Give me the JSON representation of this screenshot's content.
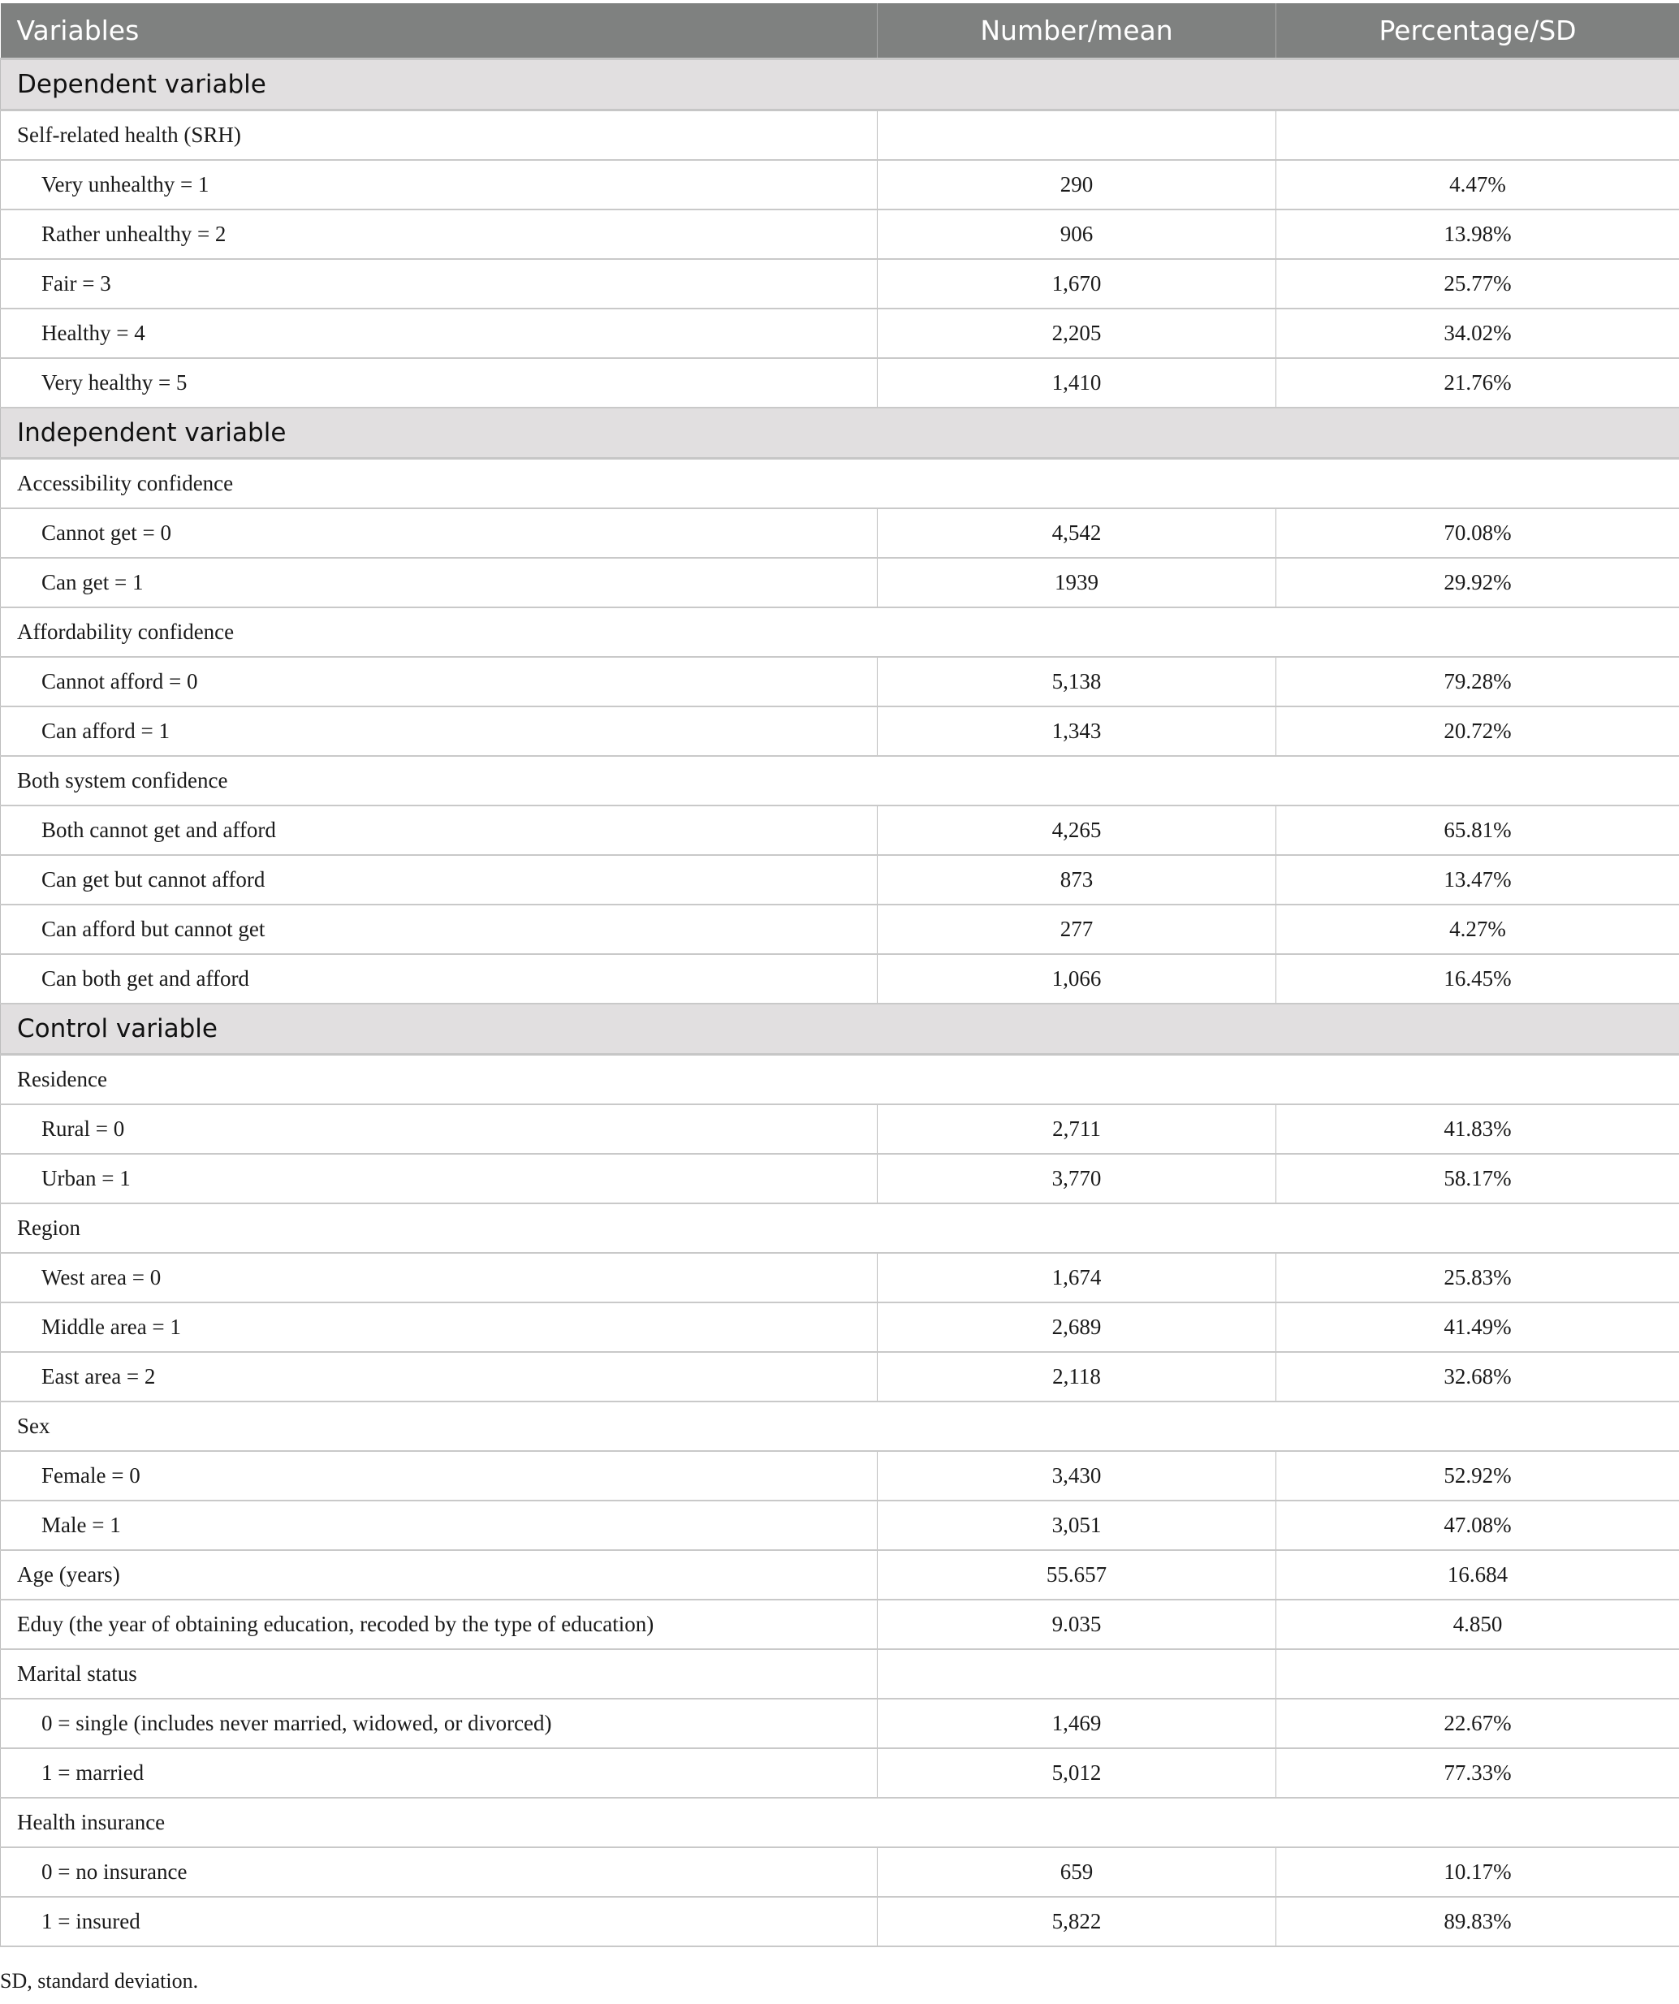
{
  "header": {
    "col1": "Variables",
    "col2": "Number/mean",
    "col3": "Percentage/SD"
  },
  "rows": [
    {
      "type": "section",
      "label": "Dependent variable"
    },
    {
      "type": "group",
      "label": "Self-related health (SRH)",
      "cells": true
    },
    {
      "type": "item",
      "label": "Very unhealthy = 1",
      "n": "290",
      "pct": "4.47%"
    },
    {
      "type": "item",
      "label": "Rather unhealthy = 2",
      "n": "906",
      "pct": "13.98%"
    },
    {
      "type": "item",
      "label": "Fair = 3",
      "n": "1,670",
      "pct": "25.77%"
    },
    {
      "type": "item",
      "label": "Healthy = 4",
      "n": "2,205",
      "pct": "34.02%"
    },
    {
      "type": "item",
      "label": "Very healthy = 5",
      "n": "1,410",
      "pct": "21.76%"
    },
    {
      "type": "section",
      "label": "Independent variable"
    },
    {
      "type": "group",
      "label": "Accessibility confidence"
    },
    {
      "type": "item",
      "label": "Cannot get = 0",
      "n": "4,542",
      "pct": "70.08%"
    },
    {
      "type": "item",
      "label": "Can get = 1",
      "n": "1939",
      "pct": "29.92%"
    },
    {
      "type": "group",
      "label": "Affordability confidence"
    },
    {
      "type": "item",
      "label": "Cannot afford = 0",
      "n": "5,138",
      "pct": "79.28%"
    },
    {
      "type": "item",
      "label": "Can afford = 1",
      "n": "1,343",
      "pct": "20.72%"
    },
    {
      "type": "group",
      "label": "Both system confidence"
    },
    {
      "type": "item",
      "label": "Both cannot get and afford",
      "n": "4,265",
      "pct": "65.81%"
    },
    {
      "type": "item",
      "label": "Can get but cannot afford",
      "n": "873",
      "pct": "13.47%"
    },
    {
      "type": "item",
      "label": "Can afford but cannot get",
      "n": "277",
      "pct": "4.27%"
    },
    {
      "type": "item",
      "label": "Can both get and afford",
      "n": "1,066",
      "pct": "16.45%"
    },
    {
      "type": "section",
      "label": "Control variable"
    },
    {
      "type": "group",
      "label": "Residence"
    },
    {
      "type": "item",
      "label": "Rural = 0",
      "n": "2,711",
      "pct": "41.83%"
    },
    {
      "type": "item",
      "label": "Urban = 1",
      "n": "3,770",
      "pct": "58.17%"
    },
    {
      "type": "group",
      "label": "Region"
    },
    {
      "type": "item",
      "label": "West area = 0",
      "n": "1,674",
      "pct": "25.83%"
    },
    {
      "type": "item",
      "label": "Middle area = 1",
      "n": "2,689",
      "pct": "41.49%"
    },
    {
      "type": "item",
      "label": "East area = 2",
      "n": "2,118",
      "pct": "32.68%"
    },
    {
      "type": "group",
      "label": "Sex"
    },
    {
      "type": "item",
      "label": "Female = 0",
      "n": "3,430",
      "pct": "52.92%"
    },
    {
      "type": "item",
      "label": "Male = 1",
      "n": "3,051",
      "pct": "47.08%"
    },
    {
      "type": "value",
      "label": "Age (years)",
      "n": "55.657",
      "pct": "16.684"
    },
    {
      "type": "value",
      "label": "Eduy (the year of obtaining education, recoded by the type of education)",
      "n": "9.035",
      "pct": "4.850"
    },
    {
      "type": "group",
      "label": "Marital status",
      "cells": true
    },
    {
      "type": "item",
      "label": "0 = single (includes never married, widowed, or divorced)",
      "n": "1,469",
      "pct": "22.67%"
    },
    {
      "type": "item",
      "label": "1 = married",
      "n": "5,012",
      "pct": "77.33%"
    },
    {
      "type": "group",
      "label": "Health insurance"
    },
    {
      "type": "item",
      "label": "0 = no insurance",
      "n": "659",
      "pct": "10.17%"
    },
    {
      "type": "item",
      "label": "1 = insured",
      "n": "5,822",
      "pct": "89.83%"
    }
  ],
  "footnote": "SD, standard deviation.",
  "colors": {
    "header_bg": "#7f8180",
    "section_bg": "#e1dfe0"
  }
}
